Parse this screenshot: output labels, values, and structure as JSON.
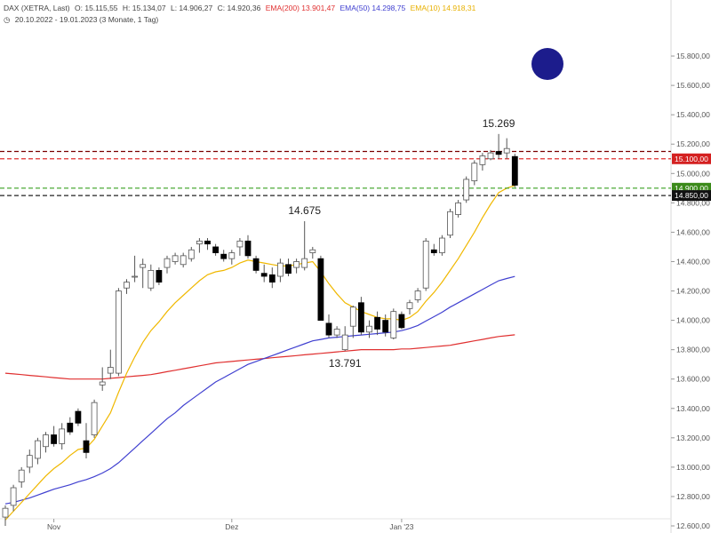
{
  "header": {
    "line1": {
      "instrument": "DAX (XETRA, Last)",
      "open": "O: 15.115,55",
      "high": "H: 15.134,07",
      "low": "L: 14.906,27",
      "close": "C: 14.920,36",
      "ema200": "EMA(200)  13.901,47",
      "ema50": "EMA(50)  14.298,75",
      "ema10": "EMA(10)  14.918,31"
    },
    "line2": "20.10.2022 - 19.01.2023  (3 Monate, 1 Tag)"
  },
  "colors": {
    "up": "#ffffff",
    "down": "#000000",
    "ema200": "#e03030",
    "ema50": "#4040d0",
    "ema10": "#f0b800",
    "marker": "#1c1c8c"
  },
  "chart_data": {
    "type": "candlestick",
    "ylim": [
      12600,
      16000
    ],
    "yticks": [
      {
        "v": 12600,
        "label": "12.600,00"
      },
      {
        "v": 12800,
        "label": "12.800,00"
      },
      {
        "v": 13000,
        "label": "13.000,00"
      },
      {
        "v": 13200,
        "label": "13.200,00"
      },
      {
        "v": 13400,
        "label": "13.400,00"
      },
      {
        "v": 13600,
        "label": "13.600,00"
      },
      {
        "v": 13800,
        "label": "13.800,00"
      },
      {
        "v": 14000,
        "label": "14.000,00"
      },
      {
        "v": 14200,
        "label": "14.200,00"
      },
      {
        "v": 14400,
        "label": "14.400,00"
      },
      {
        "v": 14600,
        "label": "14.600,00"
      },
      {
        "v": 14800,
        "label": "14.800,00"
      },
      {
        "v": 15000,
        "label": "15.000,00"
      },
      {
        "v": 15200,
        "label": "15.200,00"
      },
      {
        "v": 15400,
        "label": "15.400,00"
      },
      {
        "v": 15600,
        "label": "15.600,00"
      },
      {
        "v": 15800,
        "label": "15.800,00"
      }
    ],
    "xticks": [
      {
        "i": 6,
        "label": "Nov"
      },
      {
        "i": 28,
        "label": "Dez"
      },
      {
        "i": 49,
        "label": "Jan '23"
      }
    ],
    "candles": [
      {
        "o": 12660,
        "h": 12740,
        "l": 12600,
        "c": 12720
      },
      {
        "o": 12740,
        "h": 12880,
        "l": 12700,
        "c": 12860
      },
      {
        "o": 12900,
        "h": 13000,
        "l": 12860,
        "c": 12980
      },
      {
        "o": 13000,
        "h": 13120,
        "l": 12960,
        "c": 13080
      },
      {
        "o": 13060,
        "h": 13200,
        "l": 13020,
        "c": 13180
      },
      {
        "o": 13140,
        "h": 13240,
        "l": 13100,
        "c": 13220
      },
      {
        "o": 13220,
        "h": 13280,
        "l": 13140,
        "c": 13160
      },
      {
        "o": 13160,
        "h": 13300,
        "l": 13120,
        "c": 13260
      },
      {
        "o": 13300,
        "h": 13340,
        "l": 13220,
        "c": 13240
      },
      {
        "o": 13380,
        "h": 13400,
        "l": 13280,
        "c": 13300
      },
      {
        "o": 13180,
        "h": 13300,
        "l": 13060,
        "c": 13100
      },
      {
        "o": 13220,
        "h": 13460,
        "l": 13200,
        "c": 13440
      },
      {
        "o": 13560,
        "h": 13680,
        "l": 13520,
        "c": 13580
      },
      {
        "o": 13640,
        "h": 13800,
        "l": 13600,
        "c": 13680
      },
      {
        "o": 13640,
        "h": 14220,
        "l": 13620,
        "c": 14200
      },
      {
        "o": 14220,
        "h": 14280,
        "l": 14180,
        "c": 14260
      },
      {
        "o": 14300,
        "h": 14440,
        "l": 14260,
        "c": 14300
      },
      {
        "o": 14360,
        "h": 14420,
        "l": 14220,
        "c": 14380
      },
      {
        "o": 14220,
        "h": 14380,
        "l": 14200,
        "c": 14340
      },
      {
        "o": 14340,
        "h": 14360,
        "l": 14240,
        "c": 14260
      },
      {
        "o": 14360,
        "h": 14440,
        "l": 14320,
        "c": 14420
      },
      {
        "o": 14400,
        "h": 14460,
        "l": 14380,
        "c": 14440
      },
      {
        "o": 14380,
        "h": 14460,
        "l": 14360,
        "c": 14440
      },
      {
        "o": 14420,
        "h": 14500,
        "l": 14400,
        "c": 14480
      },
      {
        "o": 14520,
        "h": 14560,
        "l": 14460,
        "c": 14540
      },
      {
        "o": 14540,
        "h": 14560,
        "l": 14480,
        "c": 14520
      },
      {
        "o": 14500,
        "h": 14520,
        "l": 14440,
        "c": 14460
      },
      {
        "o": 14450,
        "h": 14480,
        "l": 14400,
        "c": 14420
      },
      {
        "o": 14420,
        "h": 14480,
        "l": 14380,
        "c": 14460
      },
      {
        "o": 14500,
        "h": 14560,
        "l": 14440,
        "c": 14540
      },
      {
        "o": 14540,
        "h": 14580,
        "l": 14420,
        "c": 14440
      },
      {
        "o": 14420,
        "h": 14440,
        "l": 14320,
        "c": 14340
      },
      {
        "o": 14320,
        "h": 14380,
        "l": 14260,
        "c": 14300
      },
      {
        "o": 14310,
        "h": 14360,
        "l": 14220,
        "c": 14260
      },
      {
        "o": 14300,
        "h": 14420,
        "l": 14260,
        "c": 14390
      },
      {
        "o": 14380,
        "h": 14420,
        "l": 14300,
        "c": 14320
      },
      {
        "o": 14360,
        "h": 14420,
        "l": 14320,
        "c": 14400
      },
      {
        "o": 14360,
        "h": 14675,
        "l": 14340,
        "c": 14420
      },
      {
        "o": 14460,
        "h": 14500,
        "l": 14420,
        "c": 14480
      },
      {
        "o": 14420,
        "h": 14440,
        "l": 14000,
        "c": 14000
      },
      {
        "o": 13980,
        "h": 14040,
        "l": 13880,
        "c": 13900
      },
      {
        "o": 13900,
        "h": 13960,
        "l": 13880,
        "c": 13940
      },
      {
        "o": 13800,
        "h": 13960,
        "l": 13791,
        "c": 13900
      },
      {
        "o": 13960,
        "h": 14100,
        "l": 13880,
        "c": 14090
      },
      {
        "o": 14120,
        "h": 14160,
        "l": 13900,
        "c": 13920
      },
      {
        "o": 13920,
        "h": 14000,
        "l": 13880,
        "c": 13960
      },
      {
        "o": 14020,
        "h": 14060,
        "l": 13900,
        "c": 13940
      },
      {
        "o": 14000,
        "h": 14040,
        "l": 13890,
        "c": 13920
      },
      {
        "o": 13880,
        "h": 14080,
        "l": 13870,
        "c": 14060
      },
      {
        "o": 14040,
        "h": 14060,
        "l": 13940,
        "c": 13950
      },
      {
        "o": 14080,
        "h": 14140,
        "l": 14040,
        "c": 14120
      },
      {
        "o": 14140,
        "h": 14220,
        "l": 14120,
        "c": 14200
      },
      {
        "o": 14220,
        "h": 14560,
        "l": 14200,
        "c": 14540
      },
      {
        "o": 14480,
        "h": 14520,
        "l": 14440,
        "c": 14460
      },
      {
        "o": 14460,
        "h": 14580,
        "l": 14440,
        "c": 14560
      },
      {
        "o": 14580,
        "h": 14760,
        "l": 14560,
        "c": 14740
      },
      {
        "o": 14720,
        "h": 14820,
        "l": 14700,
        "c": 14800
      },
      {
        "o": 14820,
        "h": 14980,
        "l": 14800,
        "c": 14960
      },
      {
        "o": 14950,
        "h": 15090,
        "l": 14920,
        "c": 15070
      },
      {
        "o": 15060,
        "h": 15140,
        "l": 15020,
        "c": 15120
      },
      {
        "o": 15100,
        "h": 15160,
        "l": 15090,
        "c": 15140
      },
      {
        "o": 15150,
        "h": 15269,
        "l": 15100,
        "c": 15130
      },
      {
        "o": 15140,
        "h": 15240,
        "l": 15100,
        "c": 15170
      },
      {
        "o": 15115.55,
        "h": 15134.07,
        "l": 14906.27,
        "c": 14920.36
      }
    ],
    "ema10": [
      12640,
      12700,
      12760,
      12820,
      12880,
      12940,
      12990,
      13030,
      13080,
      13120,
      13130,
      13190,
      13280,
      13370,
      13510,
      13640,
      13750,
      13850,
      13930,
      13990,
      14060,
      14120,
      14170,
      14220,
      14270,
      14310,
      14330,
      14340,
      14360,
      14390,
      14410,
      14400,
      14390,
      14380,
      14370,
      14370,
      14380,
      14390,
      14400,
      14330,
      14250,
      14180,
      14120,
      14090,
      14060,
      14040,
      14020,
      14010,
      14010,
      14000,
      14020,
      14060,
      14130,
      14190,
      14260,
      14340,
      14420,
      14510,
      14600,
      14700,
      14790,
      14870,
      14900,
      14918.31
    ],
    "ema50": [
      12750,
      12760,
      12775,
      12790,
      12810,
      12830,
      12850,
      12865,
      12880,
      12900,
      12915,
      12935,
      12960,
      12990,
      13030,
      13080,
      13130,
      13180,
      13230,
      13280,
      13330,
      13370,
      13420,
      13460,
      13500,
      13540,
      13580,
      13610,
      13640,
      13670,
      13700,
      13720,
      13740,
      13760,
      13780,
      13800,
      13820,
      13840,
      13860,
      13870,
      13880,
      13885,
      13890,
      13895,
      13900,
      13905,
      13910,
      13915,
      13920,
      13930,
      13945,
      13965,
      13995,
      14025,
      14055,
      14090,
      14120,
      14150,
      14180,
      14210,
      14240,
      14270,
      14285,
      14298.75
    ],
    "ema200": [
      13640,
      13635,
      13630,
      13625,
      13620,
      13615,
      13610,
      13605,
      13600,
      13600,
      13600,
      13600,
      13600,
      13605,
      13610,
      13615,
      13620,
      13625,
      13630,
      13640,
      13650,
      13660,
      13670,
      13680,
      13690,
      13700,
      13710,
      13715,
      13720,
      13725,
      13730,
      13735,
      13740,
      13745,
      13750,
      13755,
      13760,
      13765,
      13770,
      13775,
      13780,
      13785,
      13790,
      13795,
      13800,
      13800,
      13800,
      13800,
      13800,
      13805,
      13805,
      13810,
      13815,
      13820,
      13825,
      13830,
      13840,
      13850,
      13860,
      13870,
      13880,
      13890,
      13895,
      13901.47
    ],
    "hlines": [
      {
        "v": 15150,
        "color": "#7a0000",
        "dash": "5,3"
      },
      {
        "v": 15100,
        "color": "#e03030",
        "dash": "5,3"
      },
      {
        "v": 14900,
        "color": "#39a020",
        "dash": "5,3"
      },
      {
        "v": 14850,
        "color": "#222222",
        "dash": "5,3"
      }
    ],
    "price_tags": [
      {
        "v": 15100,
        "label": "15.100,00",
        "bg": "#d42020"
      },
      {
        "v": 14900,
        "label": "14.900,00",
        "bg": "#3b8a1a"
      },
      {
        "v": 14850,
        "label": "14.850,00",
        "bg": "#111111"
      }
    ],
    "annotations": [
      {
        "i": 37,
        "v": 14675,
        "label": "14.675",
        "pos": "above"
      },
      {
        "i": 42,
        "v": 13791,
        "label": "13.791",
        "pos": "below"
      },
      {
        "i": 61,
        "v": 15269,
        "label": "15.269",
        "pos": "above"
      }
    ]
  }
}
